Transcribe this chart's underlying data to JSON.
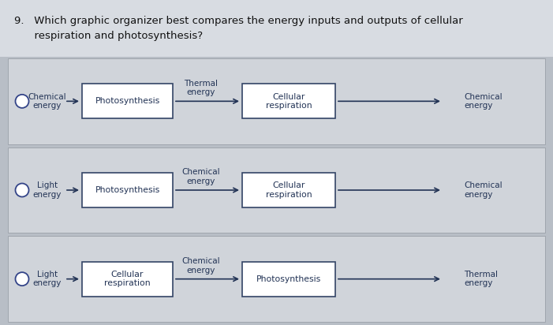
{
  "fig_w": 7.01,
  "fig_h": 4.12,
  "bg_color": "#b8bec6",
  "title_bg": "#d8dce2",
  "title_text": "9.   Which graphic organizer best compares the energy inputs and outputs of cellular\n      respiration and photosynthesis?",
  "title_color": "#111111",
  "title_fontsize": 9.5,
  "row_bg": "#d0d4da",
  "row_border": "#9aa0a8",
  "box_bg": "#ffffff",
  "box_border": "#334466",
  "text_color": "#223355",
  "arrow_color": "#223355",
  "radio_border": "#334488",
  "radio_fill": "#ffffff",
  "rows": [
    {
      "radio_selected": false,
      "input_label": "Chemical\nenergy",
      "box1_label": "Photosynthesis",
      "middle_label": "Thermal\nenergy",
      "box2_label": "Cellular\nrespiration",
      "output_label": "Chemical\nenergy"
    },
    {
      "radio_selected": false,
      "input_label": "Light\nenergy",
      "box1_label": "Photosynthesis",
      "middle_label": "Chemical\nenergy",
      "box2_label": "Cellular\nrespiration",
      "output_label": "Chemical\nenergy"
    },
    {
      "radio_selected": false,
      "input_label": "Light\nenergy",
      "box1_label": "Cellular\nrespiration",
      "middle_label": "Chemical\nenergy",
      "box2_label": "Photosynthesis",
      "output_label": "Thermal\nenergy"
    }
  ]
}
